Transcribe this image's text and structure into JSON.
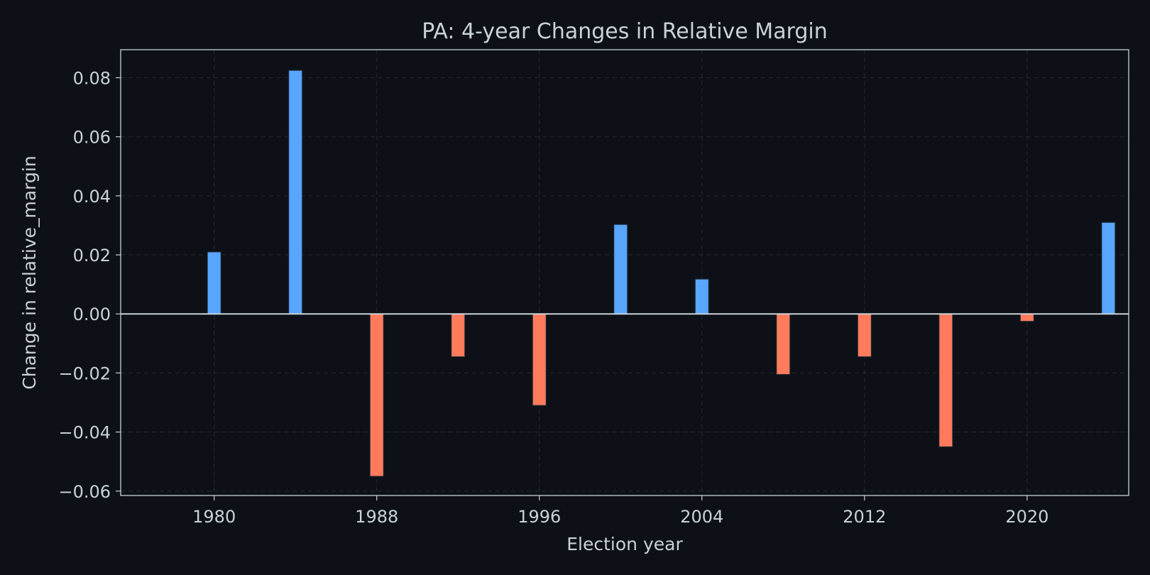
{
  "chart_data": {
    "type": "bar",
    "title": "PA: 4-year Changes in Relative Margin",
    "xlabel": "Election year",
    "ylabel": "Change in relative_margin",
    "x": [
      1980,
      1984,
      1988,
      1992,
      1996,
      2000,
      2004,
      2008,
      2012,
      2016,
      2020,
      2024
    ],
    "values": [
      0.021,
      0.0825,
      -0.055,
      -0.0145,
      -0.031,
      0.0303,
      0.0118,
      -0.0205,
      -0.0145,
      -0.045,
      -0.0025,
      0.031
    ],
    "xlim": [
      1975.4,
      2025.0
    ],
    "ylim": [
      -0.0615,
      0.0895
    ],
    "xticks": [
      1980,
      1988,
      1996,
      2004,
      2012,
      2020
    ],
    "xtick_labels": [
      "1980",
      "1988",
      "1996",
      "2004",
      "2012",
      "2020"
    ],
    "yticks": [
      -0.06,
      -0.04,
      -0.02,
      0.0,
      0.02,
      0.04,
      0.06,
      0.08
    ],
    "ytick_labels": [
      "−0.06",
      "−0.04",
      "−0.02",
      "0.00",
      "0.02",
      "0.04",
      "0.06",
      "0.08"
    ],
    "grid": true,
    "colors": {
      "positive": "#58a6ff",
      "negative": "#ff7b5c",
      "background": "#0d1117",
      "axes": "#c9d1d9",
      "grid": "#30363d"
    }
  }
}
